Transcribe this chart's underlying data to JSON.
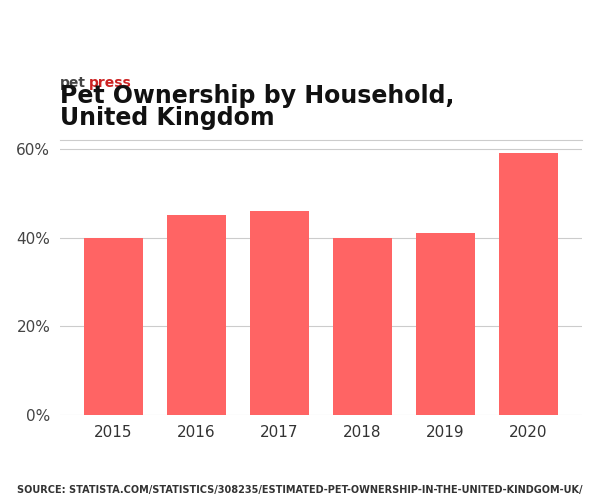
{
  "years": [
    "2015",
    "2016",
    "2017",
    "2018",
    "2019",
    "2020"
  ],
  "values": [
    40,
    45,
    46,
    40,
    41,
    59
  ],
  "bar_color": "#FF6464",
  "background_color": "#FFFFFF",
  "title_line1": "Pet Ownership by Household,",
  "title_line2": "United Kingdom",
  "brand_pet": "pet",
  "brand_press": "press",
  "brand_pet_color": "#444444",
  "brand_press_color": "#CC2222",
  "title_color": "#111111",
  "yticks": [
    0,
    20,
    40,
    60
  ],
  "ylim": [
    0,
    62
  ],
  "source_text": "SOURCE: STATISTA.COM/STATISTICS/308235/ESTIMATED-PET-OWNERSHIP-IN-THE-UNITED-KINDGOM-UK/",
  "source_fontsize": 7,
  "title_fontsize": 17,
  "brand_fontsize": 10,
  "tick_fontsize": 11,
  "grid_color": "#CCCCCC"
}
